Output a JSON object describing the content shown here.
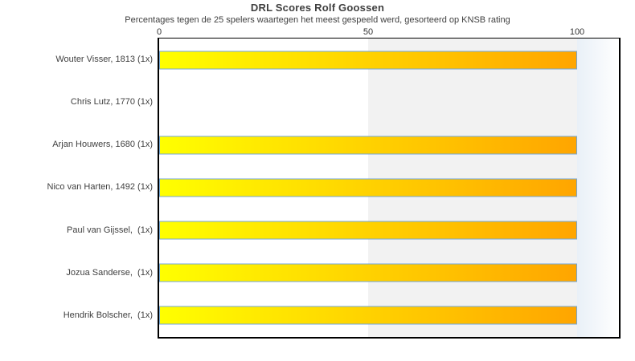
{
  "chart_data": {
    "type": "bar",
    "orientation": "horizontal",
    "title": "DRL Scores Rolf Goossen",
    "subtitle": "Percentages tegen de 25 spelers waartegen het meest gespeeld werd, gesorteerd op KNSB rating",
    "categories": [
      "Wouter Visser, 1813 (1x)",
      "Chris Lutz, 1770 (1x)",
      "Arjan Houwers, 1680 (1x)",
      "Nico van Harten, 1492 (1x)",
      "Paul van Gijssel,  (1x)",
      "Jozua Sanderse,  (1x)",
      "Hendrik Bolscher,  (1x)"
    ],
    "values": [
      100,
      0,
      100,
      100,
      100,
      100,
      100
    ],
    "x_ticks": [
      0,
      50,
      100
    ],
    "xlim": [
      0,
      110
    ],
    "axis_position": "top",
    "grid": false,
    "legend": false,
    "colors": {
      "bar_gradient_start": "#ffff00",
      "bar_gradient_end": "#ffa500",
      "bar_border": "#74a7d4",
      "band_color": "#f2f2f2",
      "band_range": [
        50,
        100
      ],
      "fade_color": "#e9f0f7",
      "frame_color": "#000000",
      "text_color": "#3f3f3f"
    }
  }
}
